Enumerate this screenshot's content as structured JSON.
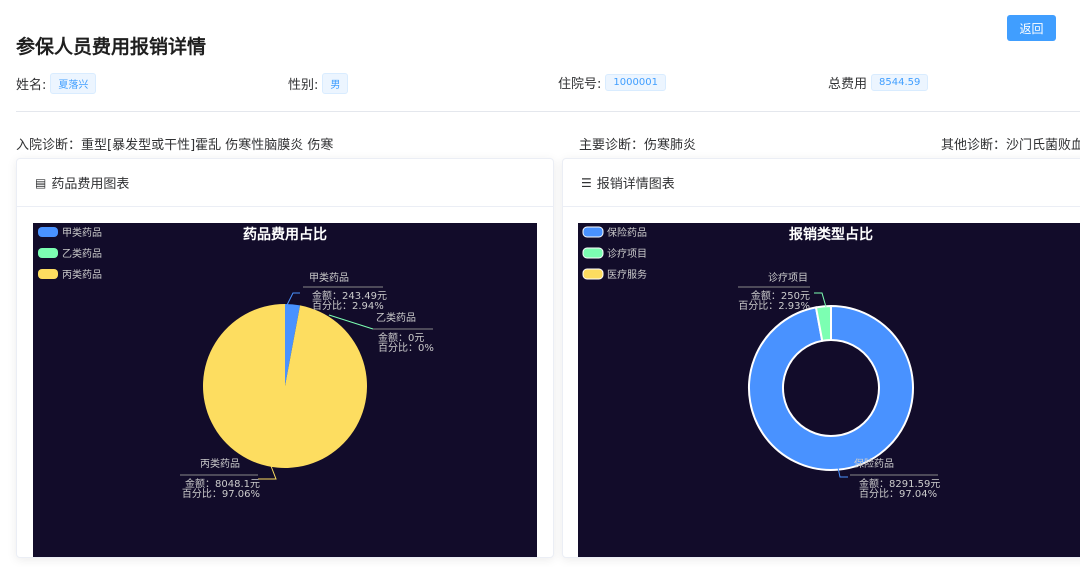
{
  "page": {
    "title": "参保人员费用报销详情",
    "back_label": "返回"
  },
  "info": [
    {
      "label": "姓名:",
      "value": "夏落兴"
    },
    {
      "label": "性别:",
      "value": "男"
    },
    {
      "label": "住院号:",
      "value": "1000001"
    },
    {
      "label": "总费用",
      "value": "8544.59"
    }
  ],
  "diagnosis": {
    "admission": "入院诊断：重型[暴发型或干性]霍乱 伤寒性脑膜炎 伤寒",
    "main": "主要诊断：伤寒肺炎",
    "other": "其他诊断：沙门氏菌败血"
  },
  "cards": [
    {
      "title": "药品费用图表",
      "icon": "document-icon"
    },
    {
      "title": "报销详情图表",
      "icon": "sliders-icon"
    }
  ],
  "chart_data": [
    {
      "type": "pie",
      "title": "药品费用占比",
      "legend_position": "top-left",
      "categories": [
        "甲类药品",
        "乙类药品",
        "丙类药品"
      ],
      "values": [
        243.49,
        0,
        8048.1
      ],
      "labels": [
        {
          "name": "甲类药品",
          "amount": "金额：243.49元",
          "percent": "百分比：2.94%"
        },
        {
          "name": "乙类药品",
          "amount": "金额：0元",
          "percent": "百分比：0%"
        },
        {
          "name": "丙类药品",
          "amount": "金额：8048.1元",
          "percent": "百分比：97.06%"
        }
      ],
      "colors": [
        "#4992ff",
        "#7cffb2",
        "#fddd60"
      ]
    },
    {
      "type": "pie",
      "variant": "donut",
      "title": "报销类型占比",
      "legend_position": "top-left",
      "categories": [
        "保险药品",
        "诊疗项目",
        "医疗服务"
      ],
      "values": [
        8291.59,
        250,
        null
      ],
      "labels": [
        {
          "name": "保险药品",
          "amount": "金额：8291.59元",
          "percent": "百分比：97.04%"
        },
        {
          "name": "诊疗项目",
          "amount": "金额：250元",
          "percent": "百分比：2.93%"
        }
      ],
      "colors": [
        "#4992ff",
        "#7cffb2",
        "#fddd60"
      ]
    }
  ]
}
